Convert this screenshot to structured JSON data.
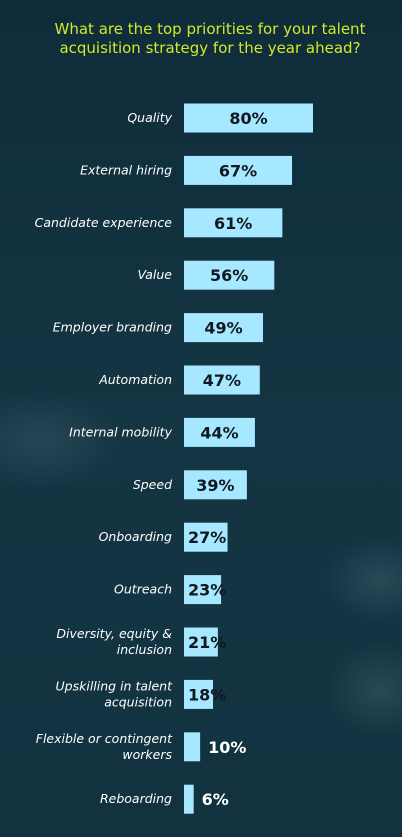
{
  "chart_data": {
    "type": "bar",
    "orientation": "horizontal",
    "title": "What are the top priorities for your talent acquisition strategy for the year ahead?",
    "categories": [
      "Quality",
      "External hiring",
      "Candidate experience",
      "Value",
      "Employer branding",
      "Automation",
      "Internal mobility",
      "Speed",
      "Onboarding",
      "Outreach",
      "Diversity, equity & inclusion",
      "Upskilling in talent acquisition",
      "Flexible or contingent workers",
      "Reboarding"
    ],
    "category_lines": [
      [
        "Quality"
      ],
      [
        "External hiring"
      ],
      [
        "Candidate experience"
      ],
      [
        "Value"
      ],
      [
        "Employer branding"
      ],
      [
        "Automation"
      ],
      [
        "Internal mobility"
      ],
      [
        "Speed"
      ],
      [
        "Onboarding"
      ],
      [
        "Outreach"
      ],
      [
        "Diversity, equity &",
        "inclusion"
      ],
      [
        "Upskilling in talent",
        "acquisition"
      ],
      [
        "Flexible or contingent",
        "workers"
      ],
      [
        "Reboarding"
      ]
    ],
    "values": [
      80,
      67,
      61,
      56,
      49,
      47,
      44,
      39,
      27,
      23,
      21,
      18,
      10,
      6
    ],
    "value_labels": [
      "80%",
      "67%",
      "61%",
      "56%",
      "49%",
      "47%",
      "44%",
      "39%",
      "27%",
      "23%",
      "21%",
      "18%",
      "10%",
      "6%"
    ],
    "xlim": [
      0,
      100
    ],
    "grid": false,
    "legend": "none",
    "colors": {
      "bar": "#a6e8ff",
      "title": "#d4e82a",
      "background": "#12303f",
      "label_text": "#ffffff",
      "value_text_inside": "#101820"
    }
  }
}
